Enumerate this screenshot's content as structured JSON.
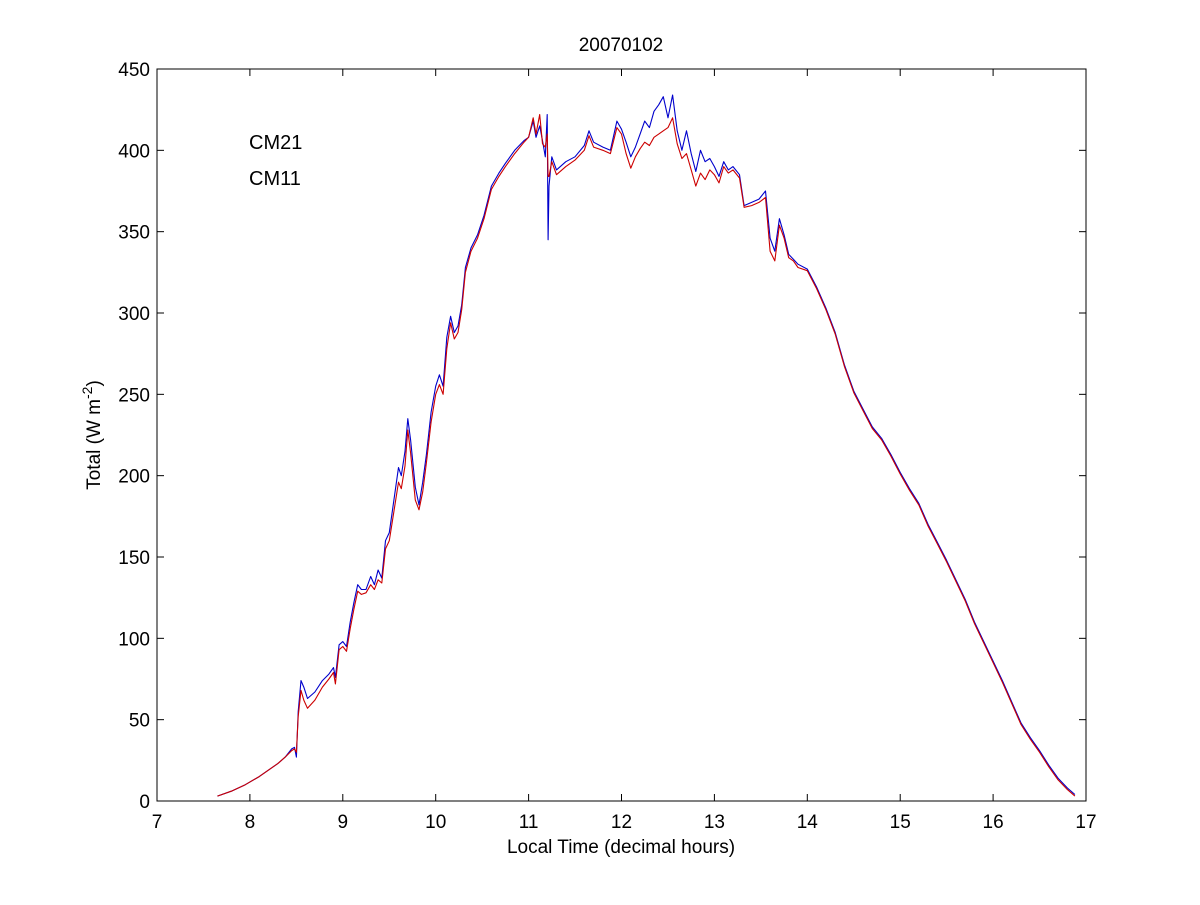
{
  "chart_data": {
    "type": "line",
    "title": "20070102",
    "xlabel": "Local Time (decimal hours)",
    "ylabel": {
      "prefix": "Total (W m",
      "superscript": "-2",
      "suffix": ")"
    },
    "xlim": [
      7,
      17
    ],
    "ylim": [
      0,
      450
    ],
    "xticks": [
      7,
      8,
      9,
      10,
      11,
      12,
      13,
      14,
      15,
      16,
      17
    ],
    "yticks": [
      0,
      50,
      100,
      150,
      200,
      250,
      300,
      350,
      400,
      450
    ],
    "grid": false,
    "legend_placement": "top-left",
    "series": [
      {
        "name": "CM21",
        "color": "#0000cc",
        "points": [
          [
            7.65,
            3
          ],
          [
            7.8,
            6
          ],
          [
            7.95,
            10
          ],
          [
            8.1,
            15
          ],
          [
            8.2,
            19
          ],
          [
            8.3,
            23
          ],
          [
            8.38,
            27
          ],
          [
            8.45,
            32
          ],
          [
            8.48,
            33
          ],
          [
            8.5,
            27
          ],
          [
            8.52,
            55
          ],
          [
            8.55,
            74
          ],
          [
            8.58,
            70
          ],
          [
            8.62,
            63
          ],
          [
            8.7,
            67
          ],
          [
            8.78,
            74
          ],
          [
            8.85,
            78
          ],
          [
            8.9,
            82
          ],
          [
            8.92,
            76
          ],
          [
            8.96,
            96
          ],
          [
            9.0,
            98
          ],
          [
            9.04,
            95
          ],
          [
            9.08,
            110
          ],
          [
            9.12,
            122
          ],
          [
            9.16,
            133
          ],
          [
            9.2,
            130
          ],
          [
            9.25,
            130
          ],
          [
            9.3,
            138
          ],
          [
            9.34,
            133
          ],
          [
            9.38,
            142
          ],
          [
            9.42,
            137
          ],
          [
            9.46,
            160
          ],
          [
            9.5,
            165
          ],
          [
            9.55,
            185
          ],
          [
            9.6,
            205
          ],
          [
            9.63,
            200
          ],
          [
            9.67,
            215
          ],
          [
            9.7,
            235
          ],
          [
            9.73,
            222
          ],
          [
            9.78,
            193
          ],
          [
            9.82,
            182
          ],
          [
            9.86,
            196
          ],
          [
            9.9,
            213
          ],
          [
            9.95,
            239
          ],
          [
            10.0,
            255
          ],
          [
            10.04,
            262
          ],
          [
            10.08,
            255
          ],
          [
            10.12,
            285
          ],
          [
            10.16,
            298
          ],
          [
            10.2,
            288
          ],
          [
            10.24,
            292
          ],
          [
            10.28,
            305
          ],
          [
            10.32,
            328
          ],
          [
            10.38,
            340
          ],
          [
            10.45,
            348
          ],
          [
            10.52,
            360
          ],
          [
            10.6,
            378
          ],
          [
            10.68,
            386
          ],
          [
            10.75,
            392
          ],
          [
            10.85,
            400
          ],
          [
            10.95,
            406
          ],
          [
            11.0,
            408
          ],
          [
            11.05,
            418
          ],
          [
            11.08,
            408
          ],
          [
            11.12,
            415
          ],
          [
            11.15,
            406
          ],
          [
            11.18,
            396
          ],
          [
            11.2,
            422
          ],
          [
            11.21,
            345
          ],
          [
            11.22,
            378
          ],
          [
            11.25,
            396
          ],
          [
            11.3,
            388
          ],
          [
            11.4,
            393
          ],
          [
            11.5,
            396
          ],
          [
            11.6,
            403
          ],
          [
            11.65,
            412
          ],
          [
            11.7,
            405
          ],
          [
            11.8,
            402
          ],
          [
            11.88,
            400
          ],
          [
            11.95,
            418
          ],
          [
            12.0,
            413
          ],
          [
            12.05,
            405
          ],
          [
            12.1,
            396
          ],
          [
            12.15,
            402
          ],
          [
            12.2,
            410
          ],
          [
            12.25,
            418
          ],
          [
            12.3,
            414
          ],
          [
            12.35,
            424
          ],
          [
            12.4,
            428
          ],
          [
            12.45,
            433
          ],
          [
            12.5,
            420
          ],
          [
            12.55,
            434
          ],
          [
            12.6,
            412
          ],
          [
            12.65,
            400
          ],
          [
            12.7,
            412
          ],
          [
            12.75,
            398
          ],
          [
            12.8,
            387
          ],
          [
            12.85,
            400
          ],
          [
            12.9,
            393
          ],
          [
            12.95,
            395
          ],
          [
            13.0,
            390
          ],
          [
            13.05,
            384
          ],
          [
            13.1,
            393
          ],
          [
            13.15,
            388
          ],
          [
            13.2,
            390
          ],
          [
            13.27,
            385
          ],
          [
            13.32,
            366
          ],
          [
            13.4,
            368
          ],
          [
            13.48,
            370
          ],
          [
            13.55,
            375
          ],
          [
            13.6,
            346
          ],
          [
            13.65,
            338
          ],
          [
            13.7,
            358
          ],
          [
            13.75,
            348
          ],
          [
            13.8,
            336
          ],
          [
            13.85,
            333
          ],
          [
            13.9,
            330
          ],
          [
            14.0,
            327
          ],
          [
            14.1,
            316
          ],
          [
            14.2,
            303
          ],
          [
            14.3,
            288
          ],
          [
            14.4,
            268
          ],
          [
            14.5,
            252
          ],
          [
            14.6,
            241
          ],
          [
            14.7,
            230
          ],
          [
            14.8,
            223
          ],
          [
            14.9,
            213
          ],
          [
            15.0,
            202
          ],
          [
            15.1,
            192
          ],
          [
            15.2,
            183
          ],
          [
            15.3,
            170
          ],
          [
            15.4,
            159
          ],
          [
            15.5,
            148
          ],
          [
            15.6,
            136
          ],
          [
            15.7,
            124
          ],
          [
            15.8,
            110
          ],
          [
            15.9,
            98
          ],
          [
            16.0,
            86
          ],
          [
            16.1,
            74
          ],
          [
            16.2,
            61
          ],
          [
            16.3,
            48
          ],
          [
            16.4,
            39
          ],
          [
            16.5,
            31
          ],
          [
            16.6,
            22
          ],
          [
            16.7,
            14
          ],
          [
            16.8,
            8
          ],
          [
            16.88,
            4
          ]
        ]
      },
      {
        "name": "CM11",
        "color": "#cc0000",
        "points": [
          [
            7.65,
            3
          ],
          [
            7.8,
            6
          ],
          [
            7.95,
            10
          ],
          [
            8.1,
            15
          ],
          [
            8.2,
            19
          ],
          [
            8.3,
            23
          ],
          [
            8.38,
            27
          ],
          [
            8.45,
            31
          ],
          [
            8.48,
            32
          ],
          [
            8.5,
            30
          ],
          [
            8.52,
            52
          ],
          [
            8.55,
            68
          ],
          [
            8.58,
            62
          ],
          [
            8.62,
            57
          ],
          [
            8.7,
            62
          ],
          [
            8.78,
            70
          ],
          [
            8.85,
            75
          ],
          [
            8.9,
            79
          ],
          [
            8.92,
            72
          ],
          [
            8.96,
            93
          ],
          [
            9.0,
            95
          ],
          [
            9.04,
            92
          ],
          [
            9.08,
            106
          ],
          [
            9.12,
            118
          ],
          [
            9.16,
            129
          ],
          [
            9.2,
            127
          ],
          [
            9.25,
            128
          ],
          [
            9.3,
            133
          ],
          [
            9.34,
            130
          ],
          [
            9.38,
            136
          ],
          [
            9.42,
            134
          ],
          [
            9.46,
            155
          ],
          [
            9.5,
            160
          ],
          [
            9.55,
            178
          ],
          [
            9.6,
            196
          ],
          [
            9.63,
            192
          ],
          [
            9.67,
            206
          ],
          [
            9.7,
            228
          ],
          [
            9.73,
            214
          ],
          [
            9.78,
            185
          ],
          [
            9.82,
            179
          ],
          [
            9.86,
            190
          ],
          [
            9.9,
            208
          ],
          [
            9.95,
            233
          ],
          [
            10.0,
            250
          ],
          [
            10.04,
            256
          ],
          [
            10.08,
            250
          ],
          [
            10.12,
            278
          ],
          [
            10.16,
            294
          ],
          [
            10.2,
            284
          ],
          [
            10.24,
            288
          ],
          [
            10.28,
            302
          ],
          [
            10.32,
            325
          ],
          [
            10.38,
            338
          ],
          [
            10.45,
            346
          ],
          [
            10.52,
            358
          ],
          [
            10.6,
            376
          ],
          [
            10.68,
            384
          ],
          [
            10.75,
            390
          ],
          [
            10.85,
            398
          ],
          [
            10.95,
            405
          ],
          [
            11.0,
            408
          ],
          [
            11.05,
            420
          ],
          [
            11.08,
            410
          ],
          [
            11.12,
            422
          ],
          [
            11.15,
            404
          ],
          [
            11.18,
            402
          ],
          [
            11.2,
            410
          ],
          [
            11.21,
            384
          ],
          [
            11.22,
            384
          ],
          [
            11.25,
            393
          ],
          [
            11.3,
            385
          ],
          [
            11.4,
            390
          ],
          [
            11.5,
            394
          ],
          [
            11.6,
            400
          ],
          [
            11.65,
            409
          ],
          [
            11.7,
            402
          ],
          [
            11.8,
            400
          ],
          [
            11.88,
            398
          ],
          [
            11.95,
            414
          ],
          [
            12.0,
            410
          ],
          [
            12.05,
            398
          ],
          [
            12.1,
            389
          ],
          [
            12.15,
            396
          ],
          [
            12.2,
            401
          ],
          [
            12.25,
            405
          ],
          [
            12.3,
            403
          ],
          [
            12.35,
            408
          ],
          [
            12.4,
            410
          ],
          [
            12.45,
            412
          ],
          [
            12.5,
            414
          ],
          [
            12.55,
            420
          ],
          [
            12.6,
            404
          ],
          [
            12.65,
            395
          ],
          [
            12.7,
            398
          ],
          [
            12.75,
            388
          ],
          [
            12.8,
            378
          ],
          [
            12.85,
            386
          ],
          [
            12.9,
            382
          ],
          [
            12.95,
            388
          ],
          [
            13.0,
            385
          ],
          [
            13.05,
            380
          ],
          [
            13.1,
            390
          ],
          [
            13.15,
            386
          ],
          [
            13.2,
            388
          ],
          [
            13.27,
            383
          ],
          [
            13.32,
            365
          ],
          [
            13.4,
            366
          ],
          [
            13.48,
            368
          ],
          [
            13.55,
            371
          ],
          [
            13.6,
            338
          ],
          [
            13.65,
            332
          ],
          [
            13.7,
            354
          ],
          [
            13.75,
            346
          ],
          [
            13.8,
            334
          ],
          [
            13.85,
            332
          ],
          [
            13.9,
            328
          ],
          [
            14.0,
            326
          ],
          [
            14.1,
            315
          ],
          [
            14.2,
            302
          ],
          [
            14.3,
            287
          ],
          [
            14.4,
            267
          ],
          [
            14.5,
            251
          ],
          [
            14.6,
            240
          ],
          [
            14.7,
            229
          ],
          [
            14.8,
            222
          ],
          [
            14.9,
            212
          ],
          [
            15.0,
            201
          ],
          [
            15.1,
            191
          ],
          [
            15.2,
            182
          ],
          [
            15.3,
            169
          ],
          [
            15.4,
            158
          ],
          [
            15.5,
            147
          ],
          [
            15.6,
            135
          ],
          [
            15.7,
            123
          ],
          [
            15.8,
            109
          ],
          [
            15.9,
            97
          ],
          [
            16.0,
            85
          ],
          [
            16.1,
            73
          ],
          [
            16.2,
            60
          ],
          [
            16.3,
            47
          ],
          [
            16.4,
            38
          ],
          [
            16.5,
            30
          ],
          [
            16.6,
            21
          ],
          [
            16.7,
            13
          ],
          [
            16.8,
            7
          ],
          [
            16.88,
            3
          ]
        ]
      }
    ]
  }
}
